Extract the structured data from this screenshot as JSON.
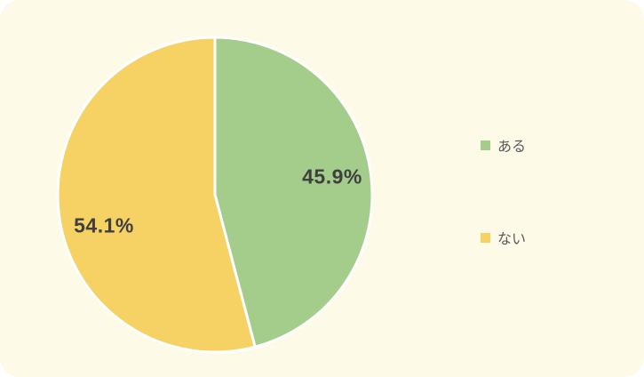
{
  "page": {
    "background": "#ffffff",
    "card_background": "#fdfae8"
  },
  "chart_data": {
    "type": "pie",
    "categories": [
      "ある",
      "ない"
    ],
    "values": [
      45.9,
      54.1
    ],
    "slice_labels": [
      "45.9%",
      "54.1%"
    ],
    "colors": [
      "#a4cd8c",
      "#f6d164"
    ],
    "start_angle_deg": 0,
    "direction": "clockwise",
    "slice_stroke_color": "#ffffff",
    "slice_label_color": "#3f3f3f",
    "legend_position": "right",
    "legend_text_color": "#595959"
  }
}
